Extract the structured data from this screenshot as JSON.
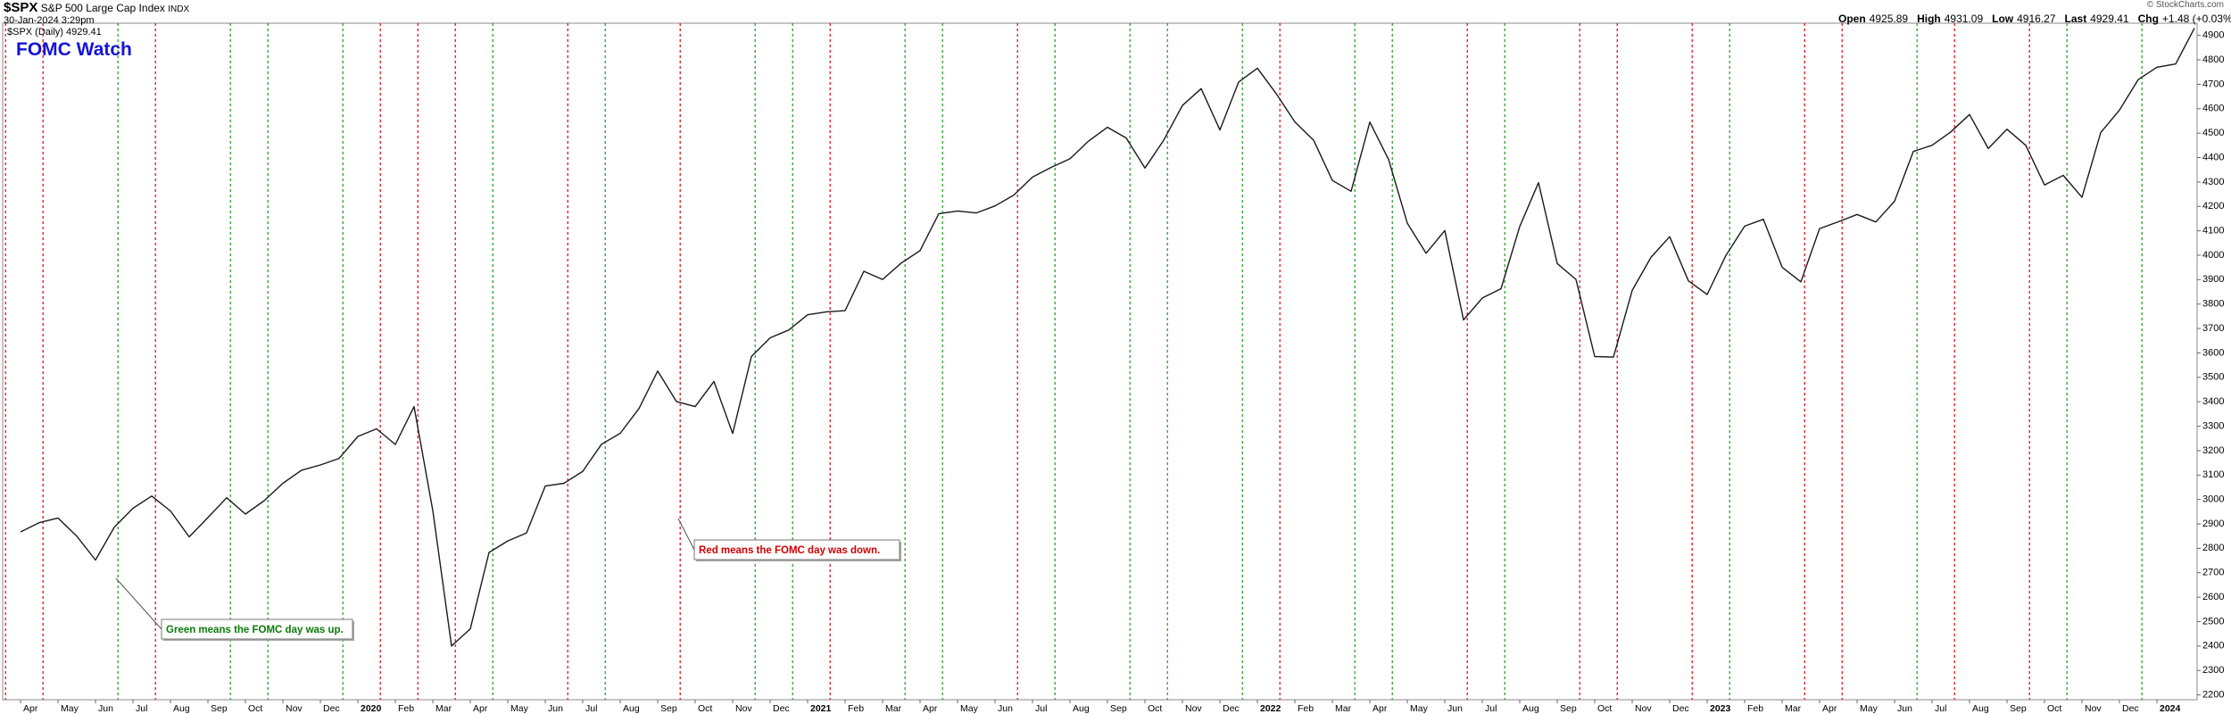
{
  "chart_data": {
    "type": "line",
    "symbol": "$SPX",
    "name": "S&P 500 Large Cap Index",
    "exchange": "INDX",
    "timestamp": "30-Jan-2024 3:29pm",
    "series_label": "$SPX (Daily) 4929.41",
    "title": "FOMC Watch",
    "quote": [
      {
        "label": "Open",
        "value": "4925.89"
      },
      {
        "label": "High",
        "value": "4931.09"
      },
      {
        "label": "Low",
        "value": "4916.27"
      },
      {
        "label": "Last",
        "value": "4929.41"
      },
      {
        "label": "Chg",
        "value": "+1.48 (+0.03%)"
      }
    ],
    "copyright": "© StockCharts.com",
    "color": "#1a1a1a",
    "categories": [
      "Apr",
      null,
      "May",
      null,
      "Jun",
      null,
      "Jul",
      null,
      "Aug",
      null,
      "Sep",
      null,
      "Oct",
      null,
      "Nov",
      null,
      "Dec",
      null,
      "2020",
      null,
      "Feb",
      null,
      "Mar",
      null,
      "Apr",
      null,
      "May",
      null,
      "Jun",
      null,
      "Jul",
      null,
      "Aug",
      null,
      "Sep",
      null,
      "Oct",
      null,
      "Nov",
      null,
      "Dec",
      null,
      "2021",
      null,
      "Feb",
      null,
      "Mar",
      null,
      "Apr",
      null,
      "May",
      null,
      "Jun",
      null,
      "Jul",
      null,
      "Aug",
      null,
      "Sep",
      null,
      "Oct",
      null,
      "Nov",
      null,
      "Dec",
      null,
      "2022",
      null,
      "Feb",
      null,
      "Mar",
      null,
      "Apr",
      null,
      "May",
      null,
      "Jun",
      null,
      "Jul",
      null,
      "Aug",
      null,
      "Sep",
      null,
      "Oct",
      null,
      "Nov",
      null,
      "Dec",
      null,
      "2023",
      null,
      "Feb",
      null,
      "Mar",
      null,
      "Apr",
      null,
      "May",
      null,
      "Jun",
      null,
      "Jul",
      null,
      "Aug",
      null,
      "Sep",
      null,
      "Oct",
      null,
      "Nov",
      null,
      "Dec",
      null,
      "2024",
      null,
      null
    ],
    "values": [
      2867,
      2905,
      2924,
      2850,
      2752,
      2886,
      2964,
      3014,
      2953,
      2847,
      2926,
      3007,
      2940,
      2995,
      3066,
      3120,
      3141,
      3168,
      3258,
      3289,
      3225,
      3380,
      2954,
      2400,
      2470,
      2783,
      2830,
      2863,
      3055,
      3066,
      3115,
      3226,
      3271,
      3372,
      3526,
      3401,
      3380,
      3483,
      3270,
      3585,
      3662,
      3694,
      3756,
      3768,
      3773,
      3934,
      3901,
      3968,
      4019,
      4170,
      4181,
      4173,
      4202,
      4246,
      4320,
      4360,
      4395,
      4468,
      4524,
      4480,
      4357,
      4471,
      4613,
      4682,
      4513,
      4709,
      4766,
      4662,
      4546,
      4471,
      4306,
      4262,
      4545,
      4392,
      4131,
      4008,
      4101,
      3735,
      3825,
      3863,
      4118,
      4297,
      3966,
      3901,
      3585,
      3583,
      3856,
      3991,
      4076,
      3895,
      3839,
      3999,
      4119,
      4147,
      3951,
      3891,
      4109,
      4137,
      4167,
      4136,
      4221,
      4425,
      4450,
      4505,
      4576,
      4437,
      4516,
      4450,
      4288,
      4327,
      4237,
      4502,
      4594,
      4719,
      4770,
      4783,
      4929.41
    ],
    "ylim": [
      2180,
      4950
    ],
    "yticks": [
      2200,
      2300,
      2400,
      2500,
      2600,
      2700,
      2800,
      2900,
      3000,
      3100,
      3200,
      3300,
      3400,
      3500,
      3600,
      3700,
      3800,
      3900,
      4000,
      4100,
      4200,
      4300,
      4400,
      4500,
      4600,
      4700,
      4800,
      4900
    ],
    "fomc": [
      {
        "month": "2019-03",
        "color": "#e0000a"
      },
      {
        "month": "2019-04",
        "color": "#e0000a"
      },
      {
        "month": "2019-06",
        "color": "#1a9a1a"
      },
      {
        "month": "2019-07",
        "color": "#e0000a"
      },
      {
        "month": "2019-09",
        "color": "#1a9a1a"
      },
      {
        "month": "2019-10",
        "color": "#1a9a1a"
      },
      {
        "month": "2019-12",
        "color": "#1a9a1a"
      },
      {
        "month": "2020-01",
        "color": "#e0000a"
      },
      {
        "month": "2020-02",
        "color": "#e0000a"
      },
      {
        "month": "2020-03",
        "color": "#e0000a"
      },
      {
        "month": "2020-04",
        "color": "#1a9a1a"
      },
      {
        "month": "2020-06",
        "color": "#e0000a"
      },
      {
        "month": "2020-07",
        "color": "#1a9a1a"
      },
      {
        "month": "2020-09",
        "color": "#e0000a"
      },
      {
        "month": "2020-11",
        "color": "#1a9a1a"
      },
      {
        "month": "2020-12",
        "color": "#1a9a1a"
      },
      {
        "month": "2021-01",
        "color": "#e0000a"
      },
      {
        "month": "2021-03",
        "color": "#1a9a1a"
      },
      {
        "month": "2021-04",
        "color": "#1a9a1a"
      },
      {
        "month": "2021-06",
        "color": "#e0000a"
      },
      {
        "month": "2021-07",
        "color": "#1a9a1a"
      },
      {
        "month": "2021-09",
        "color": "#1a9a1a"
      },
      {
        "month": "2021-10",
        "color": "#1a9a1a"
      },
      {
        "month": "2021-12",
        "color": "#1a9a1a"
      },
      {
        "month": "2022-01",
        "color": "#e0000a"
      },
      {
        "month": "2022-03",
        "color": "#1a9a1a"
      },
      {
        "month": "2022-04",
        "color": "#1a9a1a"
      },
      {
        "month": "2022-06",
        "color": "#e0000a"
      },
      {
        "month": "2022-07",
        "color": "#1a9a1a"
      },
      {
        "month": "2022-09",
        "color": "#e0000a"
      },
      {
        "month": "2022-10",
        "color": "#e0000a"
      },
      {
        "month": "2022-12",
        "color": "#e0000a"
      },
      {
        "month": "2023-01",
        "color": "#1a9a1a"
      },
      {
        "month": "2023-03",
        "color": "#e0000a"
      },
      {
        "month": "2023-04",
        "color": "#e0000a"
      },
      {
        "month": "2023-06",
        "color": "#1a9a1a"
      },
      {
        "month": "2023-07",
        "color": "#e0000a"
      },
      {
        "month": "2023-09",
        "color": "#e0000a"
      },
      {
        "month": "2023-10",
        "color": "#1a9a1a"
      },
      {
        "month": "2023-12",
        "color": "#1a9a1a"
      }
    ],
    "annotations": [
      {
        "text": "Green means the FOMC day was up.",
        "color": "#0a7a0a"
      },
      {
        "text": "Red means the FOMC day was down.",
        "color": "#d00000"
      }
    ]
  }
}
